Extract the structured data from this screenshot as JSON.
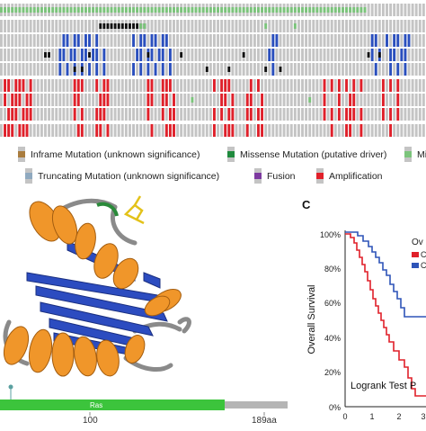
{
  "legend": [
    {
      "label": "Inframe Mutation (unknown significance)",
      "color": "#a97c3e"
    },
    {
      "label": "Missense Mutation (putative driver)",
      "color": "#1f8a3d"
    },
    {
      "label": "Mi",
      "color": "#7bc47b"
    },
    {
      "label": "Truncating Mutation (unknown significance)",
      "color": "#8fa9bf"
    },
    {
      "label": "Fusion",
      "color": "#7d3aa0"
    },
    {
      "label": "Amplification",
      "color": "#e0202a"
    }
  ],
  "panel_c": {
    "letter": "C",
    "ylabel": "Overall Survival",
    "yticks": [
      "100%",
      "80%",
      "60%",
      "40%",
      "20%",
      "0%"
    ],
    "xticks": [
      "0",
      "1",
      "2",
      "3"
    ],
    "legend_title_partial": "Ov",
    "legend_items": [
      "C",
      "C"
    ],
    "stat_text": "Logrank Test P",
    "series_colors": [
      "#e0202a",
      "#2e54b8"
    ]
  },
  "domain": {
    "name": "Ras",
    "tick_100": "100",
    "tick_end": "189aa",
    "color": "#3cc43c"
  },
  "colors": {
    "not_altered": "#c4c4c4",
    "amplification": "#e0202a",
    "deep_deletion": "#2a4fbe",
    "missense_putative": "#1f8a3d",
    "missense_unknown": "#7bc47b",
    "truncating": "#111111",
    "helix": "#f0962a",
    "sheet": "#2c4cc0",
    "loop": "#8a8a8a"
  }
}
